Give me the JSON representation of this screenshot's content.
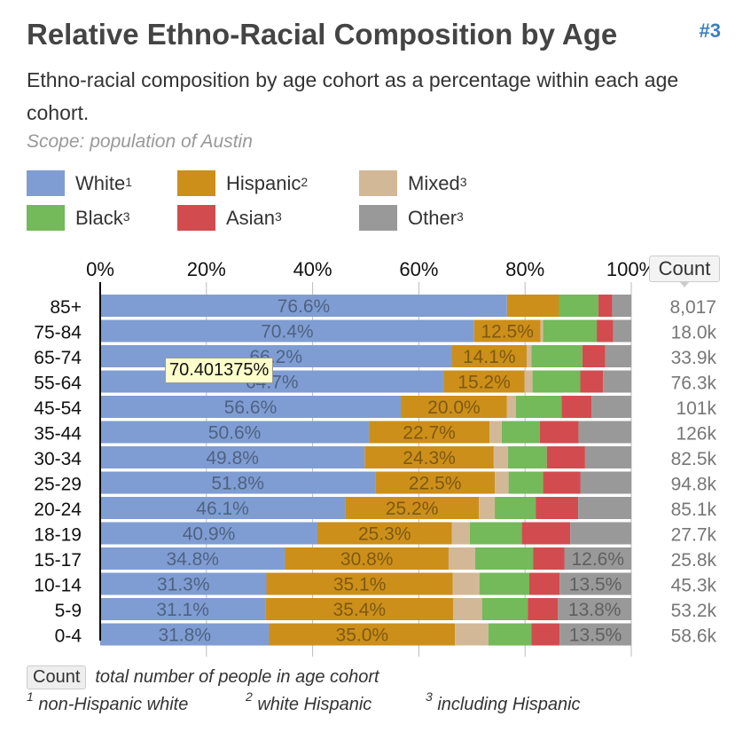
{
  "header": {
    "title": "Relative Ethno-Racial Composition by Age",
    "badge": "#3",
    "subtitle": "Ethno-racial composition by age cohort as a percentage within each age cohort.",
    "scope": "Scope: population of Austin"
  },
  "legend": [
    {
      "label": "White",
      "sup": "1",
      "color": "#7f9dd2"
    },
    {
      "label": "Hispanic",
      "sup": "2",
      "color": "#cc8f1a"
    },
    {
      "label": "Mixed",
      "sup": "3",
      "color": "#d2b896"
    },
    {
      "label": "Black",
      "sup": "3",
      "color": "#74b95a"
    },
    {
      "label": "Asian",
      "sup": "3",
      "color": "#d24c4f"
    },
    {
      "label": "Other",
      "sup": "3",
      "color": "#999999"
    }
  ],
  "count_header": "Count",
  "tooltip": "70.401375%",
  "footnotes": {
    "count_label": "Count",
    "count_desc": "total number of people in age cohort",
    "notes": [
      {
        "sup": "1",
        "text": "non-Hispanic white"
      },
      {
        "sup": "2",
        "text": "white Hispanic"
      },
      {
        "sup": "3",
        "text": "including Hispanic"
      }
    ]
  },
  "chart_data": {
    "type": "bar",
    "orientation": "horizontal",
    "stacked": true,
    "xlim": [
      0,
      100
    ],
    "x_ticks": [
      "0%",
      "20%",
      "40%",
      "60%",
      "80%",
      "100%"
    ],
    "grid": true,
    "categories": [
      "85+",
      "75-84",
      "65-74",
      "55-64",
      "45-54",
      "35-44",
      "30-34",
      "25-29",
      "20-24",
      "18-19",
      "15-17",
      "10-14",
      "5-9",
      "0-4"
    ],
    "counts": [
      "8,017",
      "18.0k",
      "33.9k",
      "76.3k",
      "101k",
      "126k",
      "82.5k",
      "94.8k",
      "85.1k",
      "27.7k",
      "25.8k",
      "45.3k",
      "53.2k",
      "58.6k"
    ],
    "series": [
      {
        "name": "White",
        "color": "#7f9dd2",
        "values": [
          76.6,
          70.4,
          66.2,
          64.7,
          56.6,
          50.6,
          49.8,
          51.8,
          46.1,
          40.9,
          34.8,
          31.3,
          31.1,
          31.8
        ],
        "labels": [
          "76.6%",
          "70.4%",
          "66.2%",
          "64.7%",
          "56.6%",
          "50.6%",
          "49.8%",
          "51.8%",
          "46.1%",
          "40.9%",
          "34.8%",
          "31.3%",
          "31.1%",
          "31.8%"
        ]
      },
      {
        "name": "Hispanic",
        "color": "#cc8f1a",
        "values": [
          9.8,
          12.5,
          14.1,
          15.2,
          20.0,
          22.7,
          24.3,
          22.5,
          25.2,
          25.3,
          30.8,
          35.1,
          35.4,
          35.0
        ],
        "labels": [
          "",
          "12.5%",
          "14.1%",
          "15.2%",
          "20.0%",
          "22.7%",
          "24.3%",
          "22.5%",
          "25.2%",
          "25.3%",
          "30.8%",
          "35.1%",
          "35.4%",
          "35.0%"
        ]
      },
      {
        "name": "Mixed",
        "color": "#d2b896",
        "values": [
          0,
          0.5,
          0.9,
          1.5,
          1.7,
          2.3,
          2.7,
          2.6,
          3.0,
          3.4,
          5.0,
          5.0,
          5.4,
          6.3
        ],
        "labels": [
          "",
          "",
          "",
          "",
          "",
          "",
          "",
          "",
          "",
          "",
          "",
          "",
          "",
          ""
        ]
      },
      {
        "name": "Black",
        "color": "#74b95a",
        "values": [
          7.4,
          10.1,
          9.6,
          9.0,
          8.6,
          7.2,
          7.3,
          6.5,
          7.7,
          9.8,
          10.9,
          9.4,
          8.6,
          8.1
        ],
        "labels": [
          "",
          "",
          "",
          "",
          "",
          "",
          "",
          "",
          "",
          "",
          "",
          "",
          "",
          ""
        ]
      },
      {
        "name": "Asian",
        "color": "#d24c4f",
        "values": [
          2.6,
          3.1,
          4.3,
          4.3,
          5.6,
          7.3,
          7.2,
          7.0,
          8.0,
          9.1,
          5.9,
          5.7,
          5.7,
          5.3
        ],
        "labels": [
          "",
          "",
          "",
          "",
          "",
          "",
          "",
          "",
          "",
          "",
          "",
          "",
          "",
          ""
        ]
      },
      {
        "name": "Other",
        "color": "#999999",
        "values": [
          3.6,
          3.4,
          4.9,
          5.3,
          7.5,
          9.9,
          8.7,
          9.6,
          10.0,
          11.5,
          12.6,
          13.5,
          13.8,
          13.5
        ],
        "labels": [
          "",
          "",
          "",
          "",
          "",
          "",
          "",
          "",
          "",
          "",
          "12.6%",
          "13.5%",
          "13.8%",
          "13.5%"
        ]
      }
    ]
  }
}
